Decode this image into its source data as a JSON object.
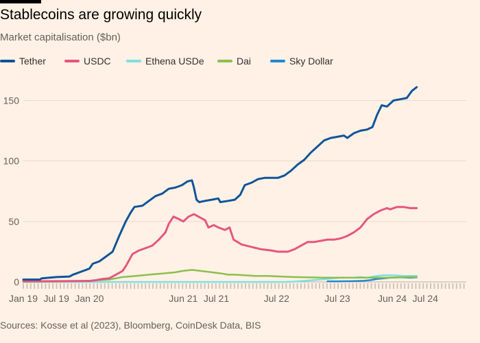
{
  "title": "Stablecoins are growing quickly",
  "subtitle": "Market capitalisation ($bn)",
  "source": "Sources: Kosse et al (2023), Bloomberg, CoinDesk Data, BIS",
  "colors": {
    "background": "#fff1e5",
    "tether": "#0f5499",
    "usdc": "#e5567f",
    "ethena": "#7ee0e0",
    "dai": "#8cbf4d",
    "sky": "#1f8ad4",
    "grid": "#e6d9ce",
    "text": "#66605c"
  },
  "chart_data": {
    "type": "line",
    "title": "Stablecoins are growing quickly",
    "subtitle": "Market capitalisation ($bn)",
    "xlabel": "",
    "ylabel": "",
    "ylim": [
      0,
      165
    ],
    "y_ticks": [
      0,
      50,
      100,
      150
    ],
    "x_ticks": [
      {
        "label": "Jan 19",
        "t": 2019.0
      },
      {
        "label": "Jul 19",
        "t": 2019.5
      },
      {
        "label": "Jan 20",
        "t": 2020.0
      },
      {
        "label": "Jun 21",
        "t": 2021.42
      },
      {
        "label": "Jul 21",
        "t": 2021.92
      },
      {
        "label": "Jul 22",
        "t": 2022.83
      },
      {
        "label": "Jul 23",
        "t": 2023.75
      },
      {
        "label": "Jun 24",
        "t": 2024.58
      },
      {
        "label": "Jul 24",
        "t": 2025.08
      }
    ],
    "xlim": [
      2019.0,
      2025.7
    ],
    "grid": true,
    "legend_position": "top",
    "series": [
      {
        "name": "Tether",
        "color_key": "tether",
        "points": [
          [
            2019.0,
            2
          ],
          [
            2019.25,
            2
          ],
          [
            2019.28,
            3
          ],
          [
            2019.5,
            4
          ],
          [
            2019.7,
            4.5
          ],
          [
            2019.75,
            6
          ],
          [
            2019.8,
            7
          ],
          [
            2019.9,
            9
          ],
          [
            2020.0,
            11
          ],
          [
            2020.05,
            15
          ],
          [
            2020.15,
            17
          ],
          [
            2020.25,
            21
          ],
          [
            2020.35,
            25
          ],
          [
            2020.45,
            38
          ],
          [
            2020.55,
            50
          ],
          [
            2020.62,
            57
          ],
          [
            2020.68,
            62
          ],
          [
            2020.8,
            63
          ],
          [
            2020.9,
            67
          ],
          [
            2021.0,
            71
          ],
          [
            2021.1,
            73
          ],
          [
            2021.2,
            77
          ],
          [
            2021.3,
            78
          ],
          [
            2021.4,
            80
          ],
          [
            2021.48,
            83
          ],
          [
            2021.55,
            84
          ],
          [
            2021.58,
            78
          ],
          [
            2021.62,
            68
          ],
          [
            2021.66,
            66
          ],
          [
            2021.75,
            67
          ],
          [
            2021.85,
            68
          ],
          [
            2021.95,
            69
          ],
          [
            2021.98,
            66
          ],
          [
            2022.1,
            67
          ],
          [
            2022.2,
            68
          ],
          [
            2022.28,
            72
          ],
          [
            2022.35,
            80
          ],
          [
            2022.45,
            82
          ],
          [
            2022.55,
            85
          ],
          [
            2022.65,
            86
          ],
          [
            2022.75,
            86
          ],
          [
            2022.85,
            86
          ],
          [
            2022.95,
            88
          ],
          [
            2023.05,
            92
          ],
          [
            2023.15,
            97
          ],
          [
            2023.25,
            101
          ],
          [
            2023.35,
            107
          ],
          [
            2023.45,
            112
          ],
          [
            2023.55,
            117
          ],
          [
            2023.65,
            119
          ],
          [
            2023.75,
            120
          ],
          [
            2023.85,
            121
          ],
          [
            2023.9,
            119
          ],
          [
            2024.0,
            123
          ],
          [
            2024.1,
            125
          ],
          [
            2024.2,
            126
          ],
          [
            2024.28,
            128
          ],
          [
            2024.35,
            138
          ],
          [
            2024.42,
            146
          ],
          [
            2024.5,
            145
          ],
          [
            2024.6,
            150
          ],
          [
            2024.7,
            151
          ],
          [
            2024.8,
            152
          ],
          [
            2024.88,
            158
          ],
          [
            2024.95,
            161
          ]
        ]
      },
      {
        "name": "USDC",
        "color_key": "usdc",
        "points": [
          [
            2019.0,
            0.5
          ],
          [
            2019.5,
            0.6
          ],
          [
            2020.0,
            0.8
          ],
          [
            2020.1,
            1.5
          ],
          [
            2020.2,
            2.5
          ],
          [
            2020.3,
            3
          ],
          [
            2020.4,
            6
          ],
          [
            2020.5,
            9
          ],
          [
            2020.55,
            13
          ],
          [
            2020.6,
            18
          ],
          [
            2020.65,
            23
          ],
          [
            2020.75,
            26
          ],
          [
            2020.85,
            28
          ],
          [
            2020.95,
            30
          ],
          [
            2021.05,
            35
          ],
          [
            2021.15,
            41
          ],
          [
            2021.2,
            48
          ],
          [
            2021.27,
            54
          ],
          [
            2021.35,
            52
          ],
          [
            2021.42,
            50
          ],
          [
            2021.5,
            54
          ],
          [
            2021.58,
            56
          ],
          [
            2021.65,
            54
          ],
          [
            2021.75,
            51
          ],
          [
            2021.8,
            45
          ],
          [
            2021.88,
            47
          ],
          [
            2021.95,
            45
          ],
          [
            2022.05,
            43
          ],
          [
            2022.12,
            45
          ],
          [
            2022.18,
            35
          ],
          [
            2022.3,
            31
          ],
          [
            2022.45,
            29
          ],
          [
            2022.6,
            27
          ],
          [
            2022.75,
            26
          ],
          [
            2022.85,
            25
          ],
          [
            2023.0,
            25
          ],
          [
            2023.1,
            27
          ],
          [
            2023.2,
            30
          ],
          [
            2023.3,
            33
          ],
          [
            2023.4,
            33
          ],
          [
            2023.5,
            34
          ],
          [
            2023.6,
            35
          ],
          [
            2023.7,
            35
          ],
          [
            2023.8,
            36
          ],
          [
            2023.9,
            38
          ],
          [
            2024.0,
            41
          ],
          [
            2024.1,
            45
          ],
          [
            2024.2,
            52
          ],
          [
            2024.3,
            56
          ],
          [
            2024.4,
            59
          ],
          [
            2024.5,
            61
          ],
          [
            2024.55,
            60
          ],
          [
            2024.65,
            62
          ],
          [
            2024.75,
            62
          ],
          [
            2024.85,
            61
          ],
          [
            2024.95,
            61
          ]
        ]
      },
      {
        "name": "Ethena USDe",
        "color_key": "ethena",
        "points": [
          [
            2019.0,
            0
          ],
          [
            2022.95,
            0
          ],
          [
            2023.1,
            0.3
          ],
          [
            2023.5,
            2
          ],
          [
            2023.7,
            3
          ],
          [
            2023.8,
            3.5
          ],
          [
            2024.0,
            3.5
          ],
          [
            2024.1,
            4
          ],
          [
            2024.2,
            3.5
          ],
          [
            2024.35,
            5
          ],
          [
            2024.45,
            5.5
          ],
          [
            2024.6,
            5.5
          ],
          [
            2024.75,
            5
          ],
          [
            2024.85,
            5
          ],
          [
            2024.95,
            5
          ]
        ]
      },
      {
        "name": "Dai",
        "color_key": "dai",
        "points": [
          [
            2019.0,
            0.1
          ],
          [
            2019.5,
            0.3
          ],
          [
            2020.0,
            1
          ],
          [
            2020.3,
            2
          ],
          [
            2020.5,
            4
          ],
          [
            2020.7,
            5
          ],
          [
            2020.9,
            6
          ],
          [
            2021.1,
            7
          ],
          [
            2021.3,
            8
          ],
          [
            2021.4,
            9
          ],
          [
            2021.55,
            10
          ],
          [
            2021.7,
            9
          ],
          [
            2021.85,
            8
          ],
          [
            2022.0,
            7
          ],
          [
            2022.1,
            6
          ],
          [
            2022.2,
            6
          ],
          [
            2022.35,
            5.5
          ],
          [
            2022.5,
            5
          ],
          [
            2022.7,
            5
          ],
          [
            2022.9,
            4.5
          ],
          [
            2023.1,
            4
          ],
          [
            2023.3,
            3.8
          ],
          [
            2023.5,
            3.5
          ],
          [
            2023.7,
            3.5
          ],
          [
            2023.9,
            3.5
          ],
          [
            2024.1,
            3.6
          ],
          [
            2024.3,
            3.5
          ],
          [
            2024.5,
            3.5
          ],
          [
            2024.7,
            3.8
          ],
          [
            2024.85,
            4
          ],
          [
            2024.95,
            4
          ]
        ]
      },
      {
        "name": "Sky Dollar",
        "color_key": "sky",
        "points": [
          [
            2023.6,
            0.5
          ],
          [
            2023.75,
            0.5
          ],
          [
            2023.95,
            0.6
          ],
          [
            2024.05,
            0.8
          ],
          [
            2024.15,
            1
          ],
          [
            2024.25,
            1.5
          ],
          [
            2024.35,
            2.5
          ],
          [
            2024.45,
            3
          ],
          [
            2024.55,
            3.5
          ],
          [
            2024.7,
            3.8
          ],
          [
            2024.85,
            3.5
          ],
          [
            2024.95,
            3.8
          ]
        ]
      }
    ]
  }
}
